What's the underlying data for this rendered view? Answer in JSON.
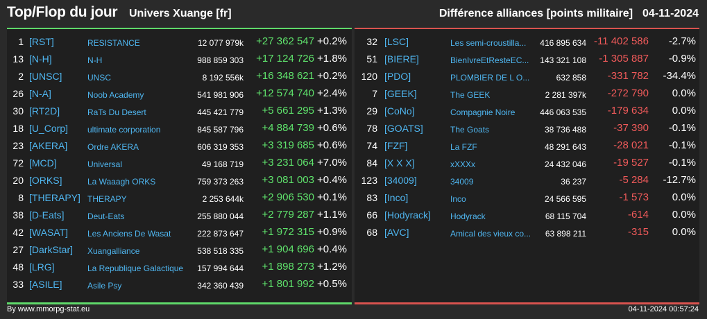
{
  "header": {
    "title": "Top/Flop du jour",
    "subtitle": "Univers Xuange [fr]",
    "right_label": "Différence alliances [points militaire]",
    "date": "04-11-2024"
  },
  "top": [
    {
      "rank": "1",
      "tag": "[RST]",
      "name": "RESISTANCE",
      "points": "12 077 979k",
      "diff": "+27 362 547",
      "pct": "+0.2%"
    },
    {
      "rank": "13",
      "tag": "[N-H]",
      "name": "N-H",
      "points": "988 859 303",
      "diff": "+17 124 726",
      "pct": "+1.8%"
    },
    {
      "rank": "2",
      "tag": "[UNSC]",
      "name": "UNSC",
      "points": "8 192 556k",
      "diff": "+16 348 621",
      "pct": "+0.2%"
    },
    {
      "rank": "26",
      "tag": "[N-A]",
      "name": "Noob Academy",
      "points": "541 981 906",
      "diff": "+12 574 740",
      "pct": "+2.4%"
    },
    {
      "rank": "30",
      "tag": "[RT2D]",
      "name": "RaTs Du Desert",
      "points": "445 421 779",
      "diff": "+5 661 295",
      "pct": "+1.3%"
    },
    {
      "rank": "18",
      "tag": "[U_Corp]",
      "name": "ultimate corporation",
      "points": "845 587 796",
      "diff": "+4 884 739",
      "pct": "+0.6%"
    },
    {
      "rank": "23",
      "tag": "[AKERA]",
      "name": "Ordre AKERA",
      "points": "606 319 353",
      "diff": "+3 319 685",
      "pct": "+0.6%"
    },
    {
      "rank": "72",
      "tag": "[MCD]",
      "name": "Universal",
      "points": "49 168 719",
      "diff": "+3 231 064",
      "pct": "+7.0%"
    },
    {
      "rank": "20",
      "tag": "[ORKS]",
      "name": "La Waaagh ORKS",
      "points": "759 373 263",
      "diff": "+3 081 003",
      "pct": "+0.4%"
    },
    {
      "rank": "8",
      "tag": "[THERAPY]",
      "name": "THERAPY",
      "points": "2 253 644k",
      "diff": "+2 906 530",
      "pct": "+0.1%"
    },
    {
      "rank": "38",
      "tag": "[D-Eats]",
      "name": "Deut-Eats",
      "points": "255 880 044",
      "diff": "+2 779 287",
      "pct": "+1.1%"
    },
    {
      "rank": "42",
      "tag": "[WASAT]",
      "name": "Les Anciens De Wasat",
      "points": "222 873 647",
      "diff": "+1 972 315",
      "pct": "+0.9%"
    },
    {
      "rank": "27",
      "tag": "[DarkStar]",
      "name": "Xuangalliance",
      "points": "538 518 335",
      "diff": "+1 904 696",
      "pct": "+0.4%"
    },
    {
      "rank": "48",
      "tag": "[LRG]",
      "name": "La Republique Galactique",
      "points": "157 994 644",
      "diff": "+1 898 273",
      "pct": "+1.2%"
    },
    {
      "rank": "33",
      "tag": "[ASILE]",
      "name": "Asile Psy",
      "points": "342 360 439",
      "diff": "+1 801 992",
      "pct": "+0.5%"
    }
  ],
  "flop": [
    {
      "rank": "32",
      "tag": "[LSC]",
      "name": "Les semi-croustilla...",
      "points": "416 895 634",
      "diff": "-11 402 586",
      "pct": "-2.7%"
    },
    {
      "rank": "51",
      "tag": "[BIERE]",
      "name": "BienIvreEtResteEC...",
      "points": "143 321 108",
      "diff": "-1 305 887",
      "pct": "-0.9%"
    },
    {
      "rank": "120",
      "tag": "[PDO]",
      "name": "PLOMBIER DE L O...",
      "points": "632 858",
      "diff": "-331 782",
      "pct": "-34.4%"
    },
    {
      "rank": "7",
      "tag": "[GEEK]",
      "name": "The GEEK",
      "points": "2 281 397k",
      "diff": "-272 790",
      "pct": "0.0%"
    },
    {
      "rank": "29",
      "tag": "[CoNo]",
      "name": "Compagnie Noire",
      "points": "446 063 535",
      "diff": "-179 634",
      "pct": "0.0%"
    },
    {
      "rank": "78",
      "tag": "[GOATS]",
      "name": "The Goats",
      "points": "38 736 488",
      "diff": "-37 390",
      "pct": "-0.1%"
    },
    {
      "rank": "74",
      "tag": "[FZF]",
      "name": "La FZF",
      "points": "48 291 643",
      "diff": "-28 021",
      "pct": "-0.1%"
    },
    {
      "rank": "84",
      "tag": "[X X X]",
      "name": "xXXXx",
      "points": "24 432 046",
      "diff": "-19 527",
      "pct": "-0.1%"
    },
    {
      "rank": "123",
      "tag": "[34009]",
      "name": "34009",
      "points": "36 237",
      "diff": "-5 284",
      "pct": "-12.7%"
    },
    {
      "rank": "83",
      "tag": "[Inco]",
      "name": "Inco",
      "points": "24 566 595",
      "diff": "-1 573",
      "pct": "0.0%"
    },
    {
      "rank": "66",
      "tag": "[Hodyrack]",
      "name": "Hodyrack",
      "points": "68 115 704",
      "diff": "-614",
      "pct": "0.0%"
    },
    {
      "rank": "68",
      "tag": "[AVC]",
      "name": "Amical des vieux co...",
      "points": "63 898 211",
      "diff": "-315",
      "pct": "0.0%"
    }
  ],
  "footer": {
    "source": "By www.mmorpg-stat.eu",
    "timestamp": "04-11-2024 00:57:24"
  },
  "colors": {
    "positive": "#5fe36c",
    "negative": "#f05a5a",
    "link": "#4fb6f0"
  }
}
